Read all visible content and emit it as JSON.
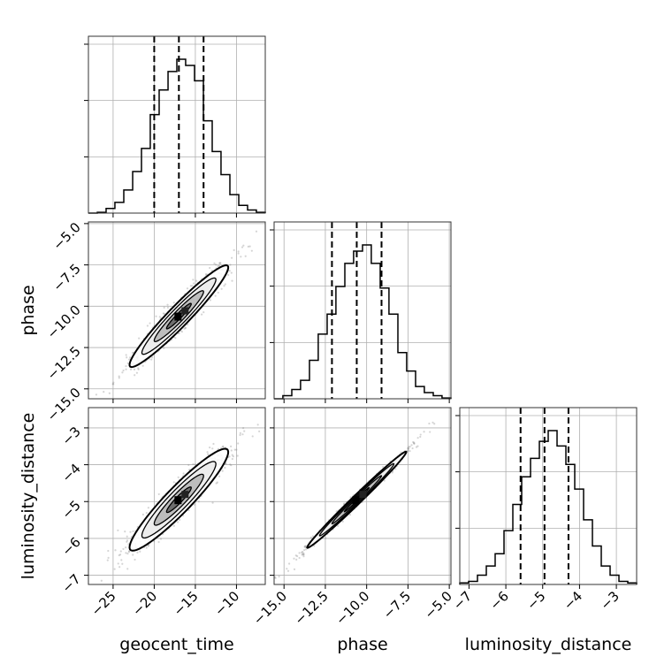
{
  "chart_data": {
    "type": "corner",
    "parameters": [
      "geocent_time",
      "phase",
      "luminosity_distance"
    ],
    "labels": {
      "geocent_time": "geocent_time",
      "phase": "phase",
      "luminosity_distance": "luminosity_distance"
    },
    "ranges": {
      "geocent_time": [
        -28,
        -6.5
      ],
      "phase": [
        -15.6,
        -4.9
      ],
      "luminosity_distance": [
        -7.25,
        -2.45
      ]
    },
    "ticks": {
      "geocent_time": [
        -25,
        -20,
        -15,
        -10
      ],
      "phase": [
        -15.0,
        -12.5,
        -10.0,
        -7.5,
        -5.0
      ],
      "luminosity_distance": [
        -7,
        -6,
        -5,
        -4,
        -3
      ]
    },
    "tick_labels": {
      "geocent_time": [
        "−25",
        "−20",
        "−15",
        "−10"
      ],
      "phase": [
        "−15.0",
        "−12.5",
        "−10.0",
        "−7.5",
        "−5.0"
      ],
      "luminosity_distance": [
        "−7",
        "−6",
        "−5",
        "−4",
        "−3"
      ]
    },
    "quantiles": {
      "geocent_time": [
        -20.0,
        -17.0,
        -14.0
      ],
      "phase": [
        -12.1,
        -10.6,
        -9.1
      ],
      "luminosity_distance": [
        -5.6,
        -4.95,
        -4.3
      ]
    },
    "histograms": {
      "geocent_time": {
        "edges": [
          -28,
          -26.92,
          -25.85,
          -24.78,
          -23.7,
          -22.62,
          -21.55,
          -20.48,
          -19.4,
          -18.32,
          -17.25,
          -16.18,
          -15.1,
          -14.02,
          -12.95,
          -11.88,
          -10.8,
          -9.72,
          -8.65,
          -7.58,
          -6.5
        ],
        "counts": [
          0.0,
          0.005,
          0.03,
          0.07,
          0.15,
          0.27,
          0.42,
          0.64,
          0.8,
          0.92,
          1.0,
          0.96,
          0.86,
          0.6,
          0.4,
          0.25,
          0.12,
          0.05,
          0.02,
          0.005
        ]
      },
      "phase": {
        "edges": [
          -15.6,
          -15.07,
          -14.53,
          -14.0,
          -13.46,
          -12.93,
          -12.39,
          -11.86,
          -11.32,
          -10.79,
          -10.25,
          -9.72,
          -9.18,
          -8.65,
          -8.11,
          -7.58,
          -7.04,
          -6.51,
          -5.97,
          -5.44,
          -4.9
        ],
        "counts": [
          0.0,
          0.02,
          0.06,
          0.12,
          0.25,
          0.42,
          0.55,
          0.73,
          0.88,
          0.96,
          1.0,
          0.88,
          0.72,
          0.55,
          0.3,
          0.18,
          0.08,
          0.04,
          0.02,
          0.005
        ]
      },
      "luminosity_distance": {
        "edges": [
          -7.25,
          -7.01,
          -6.77,
          -6.53,
          -6.29,
          -6.05,
          -5.81,
          -5.57,
          -5.33,
          -5.09,
          -4.85,
          -4.61,
          -4.37,
          -4.13,
          -3.89,
          -3.65,
          -3.41,
          -3.17,
          -2.93,
          -2.69,
          -2.45
        ],
        "counts": [
          0.01,
          0.02,
          0.06,
          0.12,
          0.2,
          0.35,
          0.52,
          0.7,
          0.82,
          0.93,
          1.0,
          0.9,
          0.78,
          0.62,
          0.42,
          0.25,
          0.12,
          0.06,
          0.02,
          0.01
        ]
      }
    },
    "pair_panels": [
      {
        "x": "geocent_time",
        "y": "phase",
        "center": [
          -17.0,
          -10.6
        ],
        "direction": [
          1.0,
          0.5
        ],
        "sd_major": 3.35,
        "sd_minor": 0.4,
        "n_points": 1000,
        "contour_sd": [
          0.5,
          1.0,
          1.5,
          2.0
        ]
      },
      {
        "x": "geocent_time",
        "y": "luminosity_distance",
        "center": [
          -17.0,
          -4.95
        ],
        "direction": [
          1.0,
          0.217
        ],
        "sd_major": 3.07,
        "sd_minor": 0.24,
        "n_points": 1000,
        "contour_sd": [
          0.5,
          1.0,
          1.5,
          2.0
        ]
      },
      {
        "x": "phase",
        "y": "luminosity_distance",
        "center": [
          -10.6,
          -4.95
        ],
        "direction": [
          1.0,
          0.433
        ],
        "sd_major": 1.635,
        "sd_minor": 0.075,
        "n_points": 1000,
        "contour_sd": [
          0.5,
          1.0,
          1.5,
          2.0
        ]
      }
    ],
    "grid": true
  }
}
